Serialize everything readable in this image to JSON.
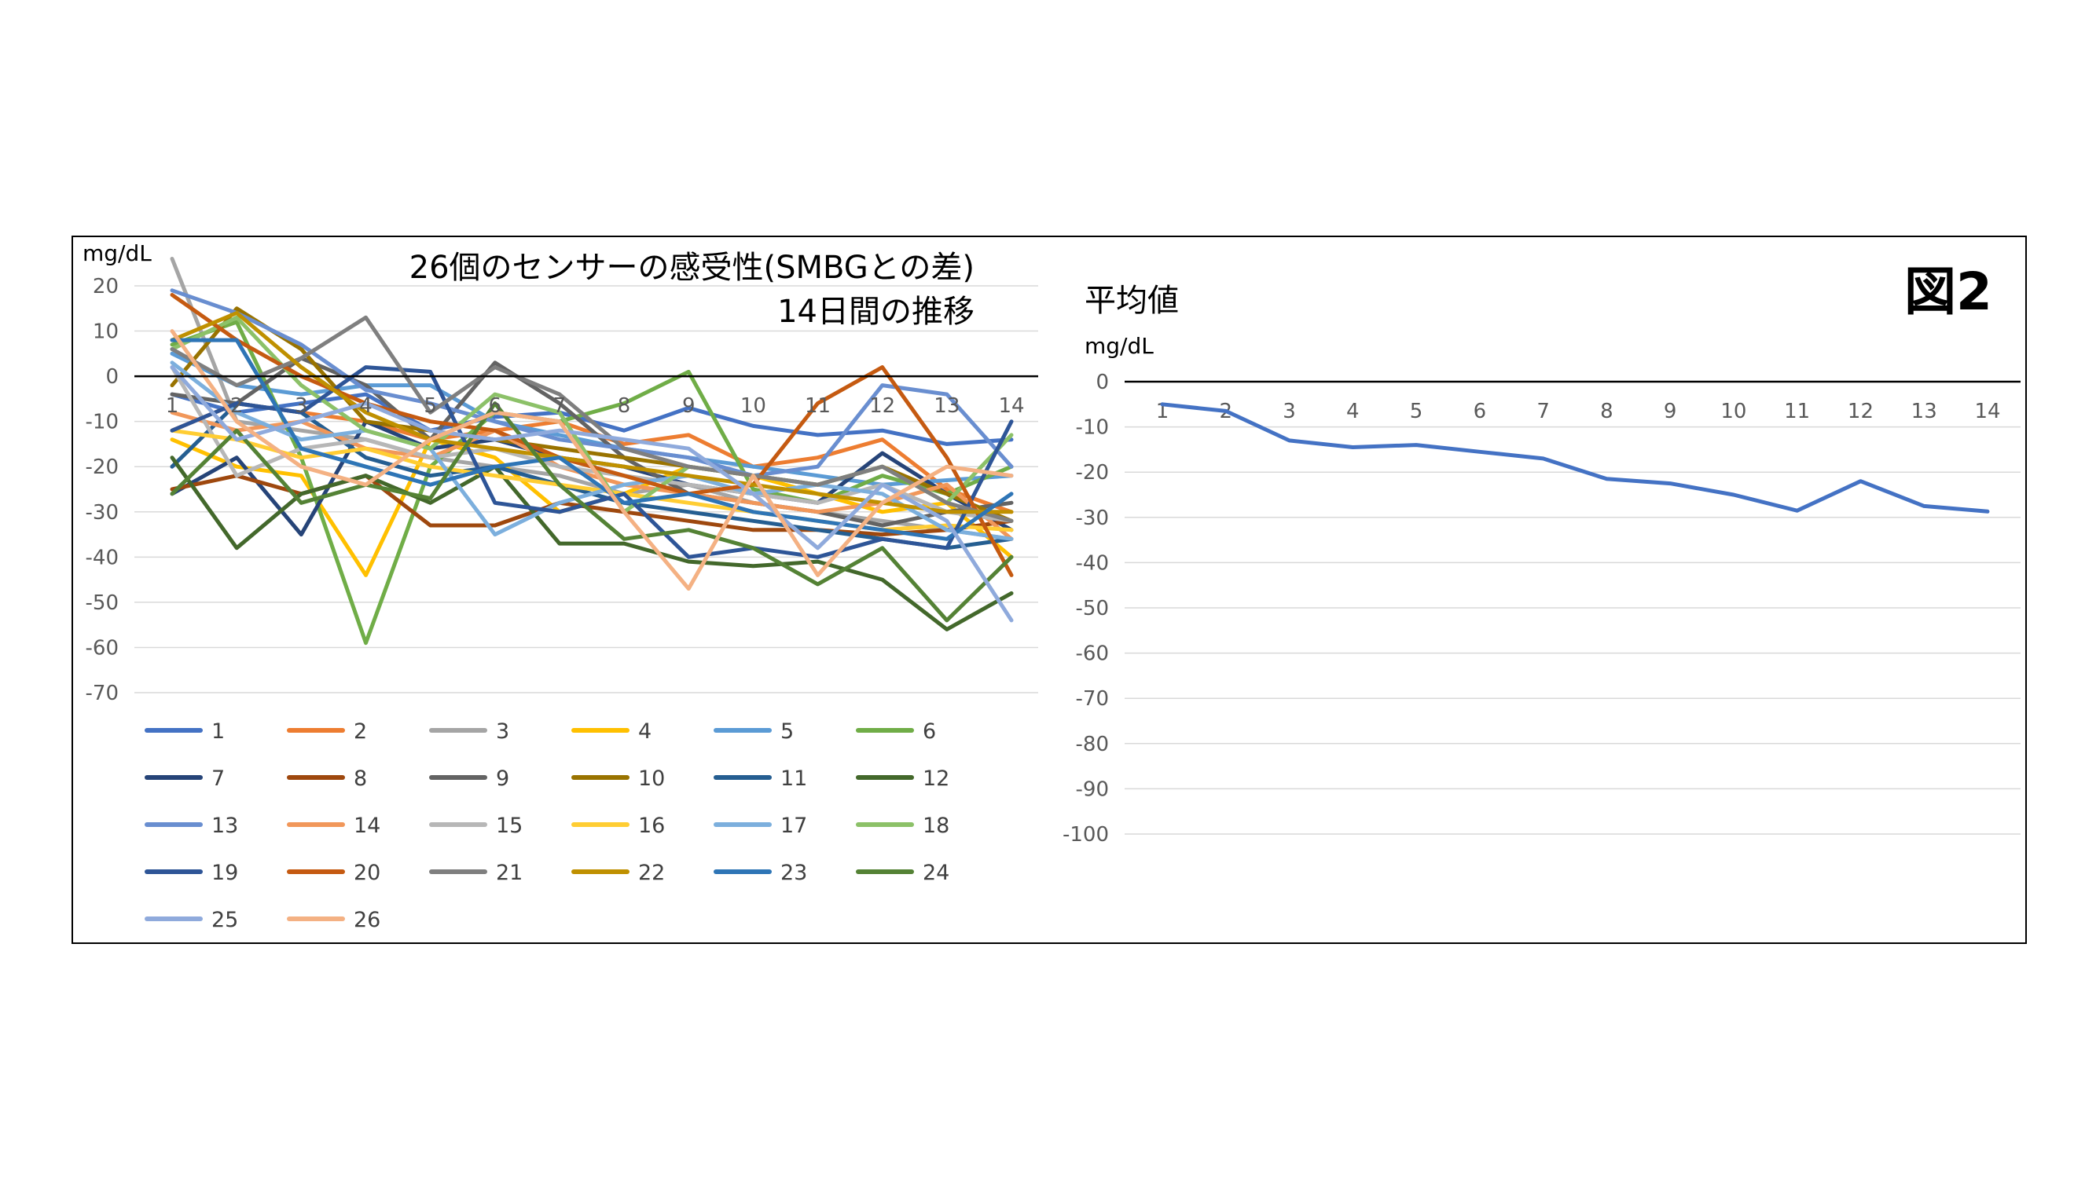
{
  "figure_label": "図2",
  "chart_data": [
    {
      "type": "line",
      "title_line1": "26個のセンサーの感受性(SMBGとの差)",
      "title_line2": "14日間の推移",
      "ylabel": "mg/dL",
      "xlabel": "",
      "ylim": [
        -70,
        20
      ],
      "yticks": [
        "20",
        "10",
        "0",
        "-10",
        "-20",
        "-30",
        "-40",
        "-50",
        "-60",
        "-70"
      ],
      "categories": [
        "1",
        "2",
        "3",
        "4",
        "5",
        "6",
        "7",
        "8",
        "9",
        "10",
        "11",
        "12",
        "13",
        "14"
      ],
      "grid": true,
      "legend_position": "bottom",
      "series": [
        {
          "name": "1",
          "color": "#4472C4",
          "values": [
            -4,
            -8,
            -6,
            -4,
            -12,
            -9,
            -8,
            -12,
            -7,
            -11,
            -13,
            -12,
            -15,
            -14
          ]
        },
        {
          "name": "2",
          "color": "#ED7D31",
          "values": [
            -12,
            -6,
            -8,
            -10,
            -14,
            -12,
            -10,
            -15,
            -13,
            -20,
            -18,
            -14,
            -25,
            -30
          ]
        },
        {
          "name": "3",
          "color": "#A5A5A5",
          "values": [
            26,
            -10,
            -12,
            -14,
            -18,
            -20,
            -22,
            -26,
            -24,
            -28,
            -30,
            -32,
            -34,
            -36
          ]
        },
        {
          "name": "4",
          "color": "#FFC000",
          "values": [
            -14,
            -20,
            -22,
            -44,
            -14,
            -18,
            -30,
            -26,
            -20,
            -22,
            -26,
            -30,
            -28,
            -40
          ]
        },
        {
          "name": "5",
          "color": "#5B9BD5",
          "values": [
            5,
            -2,
            -4,
            -2,
            -2,
            -10,
            -13,
            -16,
            -18,
            -20,
            -22,
            -24,
            -23,
            -22
          ]
        },
        {
          "name": "6",
          "color": "#70AD47",
          "values": [
            7,
            12,
            -18,
            -59,
            -20,
            -8,
            -10,
            -6,
            1,
            -25,
            -28,
            -22,
            -26,
            -20
          ]
        },
        {
          "name": "7",
          "color": "#264478",
          "values": [
            -26,
            -18,
            -35,
            -10,
            -16,
            -14,
            -18,
            -20,
            -24,
            -26,
            -28,
            -17,
            -26,
            -34
          ]
        },
        {
          "name": "8",
          "color": "#9E480E",
          "values": [
            -25,
            -22,
            -26,
            -22,
            -33,
            -33,
            -28,
            -30,
            -32,
            -34,
            -34,
            -35,
            -34,
            -32
          ]
        },
        {
          "name": "9",
          "color": "#636363",
          "values": [
            -4,
            -6,
            4,
            -2,
            -14,
            3,
            -6,
            -18,
            -26,
            -28,
            -30,
            -33,
            -30,
            -28
          ]
        },
        {
          "name": "10",
          "color": "#997300",
          "values": [
            -2,
            15,
            6,
            -10,
            -12,
            -14,
            -16,
            -18,
            -20,
            -22,
            -24,
            -20,
            -26,
            -32
          ]
        },
        {
          "name": "11",
          "color": "#255E91",
          "values": [
            -20,
            -6,
            -8,
            -18,
            -22,
            -20,
            -24,
            -28,
            -30,
            -32,
            -34,
            -36,
            -38,
            -36
          ]
        },
        {
          "name": "12",
          "color": "#43682B",
          "values": [
            -18,
            -38,
            -26,
            -22,
            -28,
            -20,
            -37,
            -37,
            -41,
            -42,
            -41,
            -45,
            -56,
            -48
          ]
        },
        {
          "name": "13",
          "color": "#698ED0",
          "values": [
            19,
            14,
            7,
            -3,
            -6,
            -10,
            -14,
            -16,
            -18,
            -22,
            -20,
            -2,
            -4,
            -20
          ]
        },
        {
          "name": "14",
          "color": "#F1975A",
          "values": [
            -8,
            -12,
            -10,
            -16,
            -18,
            -12,
            -20,
            -24,
            -26,
            -28,
            -30,
            -28,
            -24,
            -36
          ]
        },
        {
          "name": "15",
          "color": "#B7B7B7",
          "values": [
            2,
            -22,
            -16,
            -14,
            -18,
            -16,
            -20,
            -22,
            -24,
            -26,
            -28,
            -24,
            -30,
            -32
          ]
        },
        {
          "name": "16",
          "color": "#FFCD33",
          "values": [
            -12,
            -14,
            -18,
            -16,
            -20,
            -22,
            -24,
            -26,
            -28,
            -30,
            -32,
            -34,
            -33,
            -34
          ]
        },
        {
          "name": "17",
          "color": "#7CAFDD",
          "values": [
            3,
            -8,
            -14,
            -12,
            -16,
            -35,
            -28,
            -24,
            -22,
            -26,
            -24,
            -26,
            -34,
            -36
          ]
        },
        {
          "name": "18",
          "color": "#8CC168",
          "values": [
            6,
            13,
            -2,
            -12,
            -16,
            -4,
            -8,
            -30,
            -20,
            -22,
            -24,
            -20,
            -28,
            -13
          ]
        },
        {
          "name": "19",
          "color": "#2E5597",
          "values": [
            -12,
            -6,
            -8,
            2,
            1,
            -28,
            -30,
            -26,
            -40,
            -38,
            -40,
            -36,
            -38,
            -10
          ]
        },
        {
          "name": "20",
          "color": "#C55A11",
          "values": [
            18,
            8,
            0,
            -6,
            -10,
            -12,
            -18,
            -22,
            -26,
            -24,
            -6,
            2,
            -18,
            -44
          ]
        },
        {
          "name": "21",
          "color": "#7F7F7F",
          "values": [
            6,
            -2,
            4,
            13,
            -8,
            2,
            -4,
            -16,
            -20,
            -22,
            -24,
            -20,
            -28,
            -32
          ]
        },
        {
          "name": "22",
          "color": "#BF9000",
          "values": [
            8,
            14,
            2,
            -8,
            -14,
            -16,
            -18,
            -20,
            -22,
            -24,
            -26,
            -28,
            -30,
            -30
          ]
        },
        {
          "name": "23",
          "color": "#2E75B6",
          "values": [
            8,
            8,
            -16,
            -20,
            -24,
            -20,
            -18,
            -28,
            -26,
            -30,
            -32,
            -34,
            -36,
            -26
          ]
        },
        {
          "name": "24",
          "color": "#548235",
          "values": [
            -26,
            -12,
            -28,
            -24,
            -27,
            -6,
            -24,
            -36,
            -34,
            -38,
            -46,
            -38,
            -54,
            -40
          ]
        },
        {
          "name": "25",
          "color": "#8FAADC",
          "values": [
            2,
            -14,
            -10,
            -6,
            -12,
            -14,
            -12,
            -14,
            -16,
            -26,
            -38,
            -24,
            -32,
            -54
          ]
        },
        {
          "name": "26",
          "color": "#F4B183",
          "values": [
            10,
            -10,
            -20,
            -24,
            -14,
            -8,
            -10,
            -30,
            -47,
            -22,
            -44,
            -28,
            -20,
            -22
          ]
        }
      ]
    },
    {
      "type": "line",
      "title": "平均値",
      "ylabel": "mg/dL",
      "xlabel": "",
      "ylim": [
        -100,
        0
      ],
      "yticks": [
        "0",
        "-10",
        "-20",
        "-30",
        "-40",
        "-50",
        "-60",
        "-70",
        "-80",
        "-90",
        "-100"
      ],
      "categories": [
        "1",
        "2",
        "3",
        "4",
        "5",
        "6",
        "7",
        "8",
        "9",
        "10",
        "11",
        "12",
        "13",
        "14"
      ],
      "grid": true,
      "series": [
        {
          "color": "#4472C4",
          "values": [
            -5,
            -6.5,
            -13,
            -14.5,
            -14,
            -15.5,
            -17,
            -21.5,
            -22.5,
            -25,
            -28.5,
            -22,
            -27.5,
            -28.7
          ]
        }
      ]
    }
  ]
}
